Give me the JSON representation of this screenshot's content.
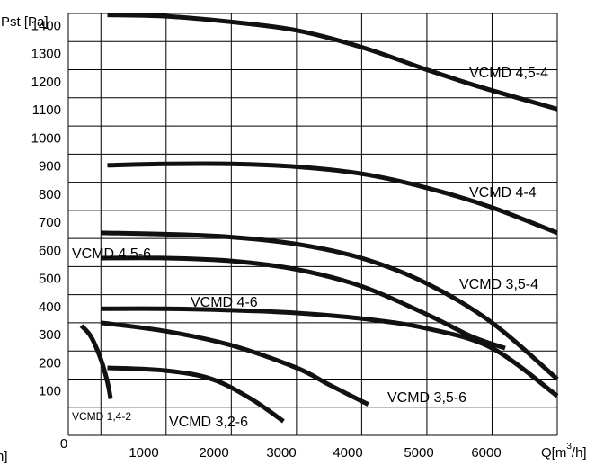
{
  "chart_data": {
    "type": "line",
    "title": "",
    "ylabel": "Pst [Pa]",
    "xlabel_prefix": "Q[m",
    "xlabel_sup": "3",
    "xlabel_suffix": "/h]",
    "left_edge_fragment": "h]",
    "xlim": [
      0,
      7500
    ],
    "ylim": [
      0,
      1500
    ],
    "x_ticks": [
      0,
      1000,
      2000,
      3000,
      4000,
      5000,
      6000
    ],
    "y_ticks": [
      100,
      200,
      300,
      400,
      500,
      600,
      700,
      800,
      900,
      1000,
      1100,
      1200,
      1300,
      1400
    ],
    "grid": true,
    "legend": "none",
    "series": [
      {
        "name": "VCMD 4,5-4",
        "x": [
          600,
          1500,
          2500,
          3500,
          4500,
          5500,
          6300,
          7500
        ],
        "y": [
          1495,
          1490,
          1470,
          1440,
          1380,
          1300,
          1240,
          1160
        ]
      },
      {
        "name": "VCMD 4-4",
        "x": [
          600,
          1500,
          2500,
          3500,
          4500,
          5500,
          6500,
          7500
        ],
        "y": [
          960,
          965,
          965,
          955,
          930,
          880,
          810,
          720
        ]
      },
      {
        "name": "VCMD 3,5-4",
        "x": [
          500,
          1500,
          2500,
          3500,
          4500,
          5500,
          6500,
          7500
        ],
        "y": [
          720,
          715,
          705,
          680,
          630,
          540,
          400,
          200
        ]
      },
      {
        "name": "VCMD 4,5-6",
        "x": [
          500,
          1500,
          2500,
          3500,
          4500,
          5500,
          6200,
          6700
        ],
        "y": [
          630,
          630,
          620,
          590,
          530,
          430,
          350,
          310
        ]
      },
      {
        "name": "VCMD 4-6",
        "x": [
          500,
          1500,
          2500,
          3500,
          4500,
          5500,
          6500,
          7500
        ],
        "y": [
          450,
          450,
          445,
          435,
          415,
          380,
          310,
          140
        ]
      },
      {
        "name": "VCMD 3,5-6",
        "x": [
          500,
          1500,
          2500,
          3500,
          4000,
          4600
        ],
        "y": [
          400,
          370,
          320,
          240,
          180,
          110
        ]
      },
      {
        "name": "VCMD 3,2-6",
        "x": [
          600,
          1500,
          2200,
          2800,
          3300
        ],
        "y": [
          240,
          230,
          200,
          130,
          50
        ]
      },
      {
        "name": "VCMD 1,4-2",
        "x": [
          200,
          350,
          500,
          600,
          650
        ],
        "y": [
          390,
          350,
          270,
          190,
          130
        ]
      }
    ]
  }
}
